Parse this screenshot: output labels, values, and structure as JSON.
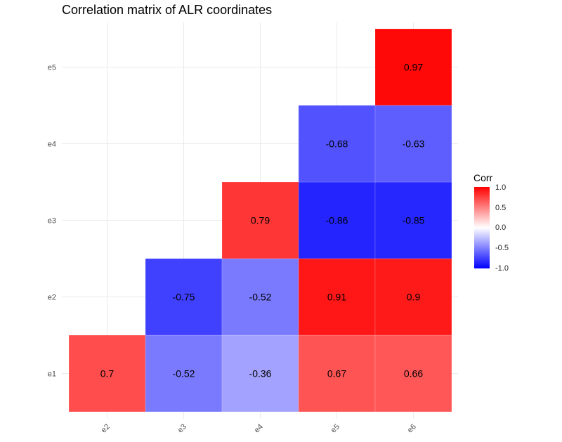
{
  "chart_data": {
    "type": "heatmap",
    "title": "Correlation matrix of ALR coordinates",
    "xlabel": "",
    "ylabel": "",
    "x_categories": [
      "e2",
      "e3",
      "e4",
      "e5",
      "e6"
    ],
    "y_categories": [
      "e1",
      "e2",
      "e3",
      "e4",
      "e5"
    ],
    "cells": [
      {
        "x": "e2",
        "y": "e1",
        "value": 0.7,
        "label": "0.7"
      },
      {
        "x": "e3",
        "y": "e1",
        "value": -0.52,
        "label": "-0.52"
      },
      {
        "x": "e4",
        "y": "e1",
        "value": -0.36,
        "label": "-0.36"
      },
      {
        "x": "e5",
        "y": "e1",
        "value": 0.67,
        "label": "0.67"
      },
      {
        "x": "e6",
        "y": "e1",
        "value": 0.66,
        "label": "0.66"
      },
      {
        "x": "e3",
        "y": "e2",
        "value": -0.75,
        "label": "-0.75"
      },
      {
        "x": "e4",
        "y": "e2",
        "value": -0.52,
        "label": "-0.52"
      },
      {
        "x": "e5",
        "y": "e2",
        "value": 0.91,
        "label": "0.91"
      },
      {
        "x": "e6",
        "y": "e2",
        "value": 0.9,
        "label": "0.9"
      },
      {
        "x": "e4",
        "y": "e3",
        "value": 0.79,
        "label": "0.79"
      },
      {
        "x": "e5",
        "y": "e3",
        "value": -0.86,
        "label": "-0.86"
      },
      {
        "x": "e6",
        "y": "e3",
        "value": -0.85,
        "label": "-0.85"
      },
      {
        "x": "e5",
        "y": "e4",
        "value": -0.68,
        "label": "-0.68"
      },
      {
        "x": "e6",
        "y": "e4",
        "value": -0.63,
        "label": "-0.63"
      },
      {
        "x": "e6",
        "y": "e5",
        "value": 0.97,
        "label": "0.97"
      }
    ],
    "legend": {
      "title": "Corr",
      "ticks": [
        "1.0",
        "0.5",
        "0.0",
        "-0.5",
        "-1.0"
      ],
      "range": [
        -1,
        1
      ],
      "colors": {
        "low": "#0000FF",
        "mid": "#FFFFFF",
        "high": "#FF0000"
      }
    },
    "grid": true,
    "legend_position": "right"
  }
}
